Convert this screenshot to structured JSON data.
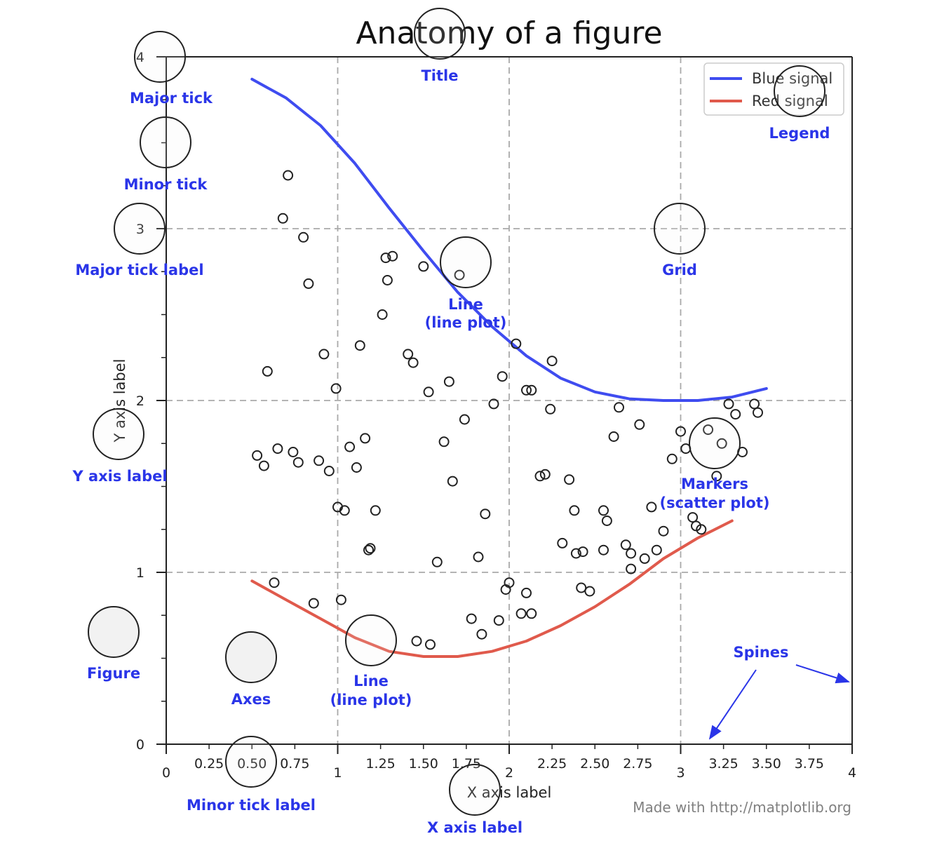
{
  "chart_data": {
    "type": "scatter",
    "title": "Anatomy of a figure",
    "xlabel": "X axis label",
    "ylabel": "Y axis label",
    "xlim": [
      0,
      4
    ],
    "ylim": [
      0,
      4
    ],
    "grid": true,
    "legend_position": "top-right",
    "major_x_ticks": [
      {
        "value": 0,
        "label": "0"
      },
      {
        "value": 1,
        "label": "1"
      },
      {
        "value": 2,
        "label": "2"
      },
      {
        "value": 3,
        "label": "3"
      },
      {
        "value": 4,
        "label": "4"
      }
    ],
    "minor_x_ticks": [
      {
        "value": 0.25,
        "label": "0.25"
      },
      {
        "value": 0.5,
        "label": "0.50"
      },
      {
        "value": 0.75,
        "label": "0.75"
      },
      {
        "value": 1.25,
        "label": "1.25"
      },
      {
        "value": 1.5,
        "label": "1.50"
      },
      {
        "value": 1.75,
        "label": "1.75"
      },
      {
        "value": 2.25,
        "label": "2.25"
      },
      {
        "value": 2.5,
        "label": "2.50"
      },
      {
        "value": 2.75,
        "label": "2.75"
      },
      {
        "value": 3.25,
        "label": "3.25"
      },
      {
        "value": 3.5,
        "label": "3.50"
      },
      {
        "value": 3.75,
        "label": "3.75"
      }
    ],
    "major_y_ticks": [
      {
        "value": 0,
        "label": "0"
      },
      {
        "value": 1,
        "label": "1"
      },
      {
        "value": 2,
        "label": "2"
      },
      {
        "value": 3,
        "label": "3"
      },
      {
        "value": 4,
        "label": "4"
      }
    ],
    "minor_y_ticks": [
      0.25,
      0.5,
      0.75,
      1.25,
      1.5,
      1.75,
      2.25,
      2.5,
      2.75,
      3.25,
      3.5,
      3.75
    ],
    "series": [
      {
        "name": "Blue signal",
        "kind": "line",
        "color": "#3f4cf0",
        "x": [
          0.5,
          0.7,
          0.9,
          1.1,
          1.3,
          1.5,
          1.7,
          1.9,
          2.1,
          2.3,
          2.5,
          2.7,
          2.9,
          3.1,
          3.3,
          3.5
        ],
        "y": [
          3.87,
          3.76,
          3.6,
          3.38,
          3.12,
          2.87,
          2.63,
          2.43,
          2.26,
          2.13,
          2.05,
          2.01,
          2.0,
          2.0,
          2.02,
          2.07
        ]
      },
      {
        "name": "Red signal",
        "kind": "line",
        "color": "#e05a4c",
        "x": [
          0.5,
          0.7,
          0.9,
          1.1,
          1.3,
          1.5,
          1.7,
          1.9,
          2.1,
          2.3,
          2.5,
          2.7,
          2.9,
          3.1,
          3.3
        ],
        "y": [
          0.95,
          0.84,
          0.73,
          0.62,
          0.54,
          0.51,
          0.51,
          0.54,
          0.6,
          0.69,
          0.8,
          0.93,
          1.08,
          1.2,
          1.3
        ]
      },
      {
        "name": "",
        "kind": "scatter",
        "color": "#222222",
        "x": [
          0.71,
          0.68,
          0.8,
          0.83,
          1.28,
          1.32,
          1.5,
          1.29,
          1.71,
          1.26,
          1.13,
          0.92,
          0.99,
          0.59,
          1.41,
          1.44,
          1.53,
          1.65,
          2.04,
          1.96,
          2.13,
          2.25,
          2.24,
          2.1,
          1.91,
          1.74,
          1.62,
          1.67,
          2.18,
          2.21,
          2.35,
          2.38,
          2.55,
          2.57,
          2.61,
          2.64,
          2.71,
          2.76,
          2.83,
          3.0,
          3.07,
          3.09,
          3.21,
          3.24,
          3.36,
          3.43,
          3.45,
          3.32,
          3.28,
          3.03,
          2.95,
          3.16,
          0.53,
          0.57,
          0.65,
          0.74,
          0.77,
          0.89,
          0.95,
          1.07,
          1.11,
          1.16,
          1.0,
          1.04,
          1.19,
          1.22,
          1.82,
          1.86,
          2.0,
          2.31,
          2.39,
          2.43,
          2.55,
          2.68,
          2.79,
          2.86,
          1.58,
          1.78,
          1.94,
          2.07,
          2.13,
          1.98,
          2.42,
          2.47,
          1.54,
          1.46,
          2.1,
          1.84,
          0.63,
          0.86,
          1.02,
          1.18,
          2.71,
          2.9,
          3.12
        ],
        "y": [
          3.31,
          3.06,
          2.95,
          2.68,
          2.83,
          2.84,
          2.78,
          2.7,
          2.73,
          2.5,
          2.32,
          2.27,
          2.07,
          2.17,
          2.27,
          2.22,
          2.05,
          2.11,
          2.33,
          2.14,
          2.06,
          2.23,
          1.95,
          2.06,
          1.98,
          1.89,
          1.76,
          1.53,
          1.56,
          1.57,
          1.54,
          1.36,
          1.36,
          1.3,
          1.79,
          1.96,
          1.11,
          1.86,
          1.38,
          1.82,
          1.32,
          1.27,
          1.56,
          1.75,
          1.7,
          1.98,
          1.93,
          1.92,
          1.98,
          1.72,
          1.66,
          1.83,
          1.68,
          1.62,
          1.72,
          1.7,
          1.64,
          1.65,
          1.59,
          1.73,
          1.61,
          1.78,
          1.38,
          1.36,
          1.14,
          1.36,
          1.09,
          1.34,
          0.94,
          1.17,
          1.11,
          1.12,
          1.13,
          1.16,
          1.08,
          1.13,
          1.06,
          0.73,
          0.72,
          0.76,
          0.76,
          0.9,
          0.91,
          0.89,
          0.58,
          0.6,
          0.88,
          0.64,
          0.94,
          0.82,
          0.84,
          1.13,
          1.02,
          1.24,
          1.25
        ]
      }
    ]
  },
  "annotations": {
    "major_tick": "Major tick",
    "minor_tick": "Minor tick",
    "major_tick_label": "Major tick label",
    "y_axis_label": "Y axis label",
    "figure": "Figure",
    "axes": "Axes",
    "line_blue_1": "Line",
    "line_blue_2": "(line plot)",
    "line_red_1": "Line",
    "line_red_2": "(line plot)",
    "title": "Title",
    "grid": "Grid",
    "legend": "Legend",
    "markers_1": "Markers",
    "markers_2": "(scatter plot)",
    "spines": "Spines",
    "minor_tick_label": "Minor tick label",
    "x_axis_label": "X axis label"
  },
  "credit": "Made with http://matplotlib.org",
  "colors": {
    "annotation": "#2a35e8",
    "grid": "#a9a9a9",
    "axis": "#222222",
    "circle_fill": "#f2f2f2"
  }
}
